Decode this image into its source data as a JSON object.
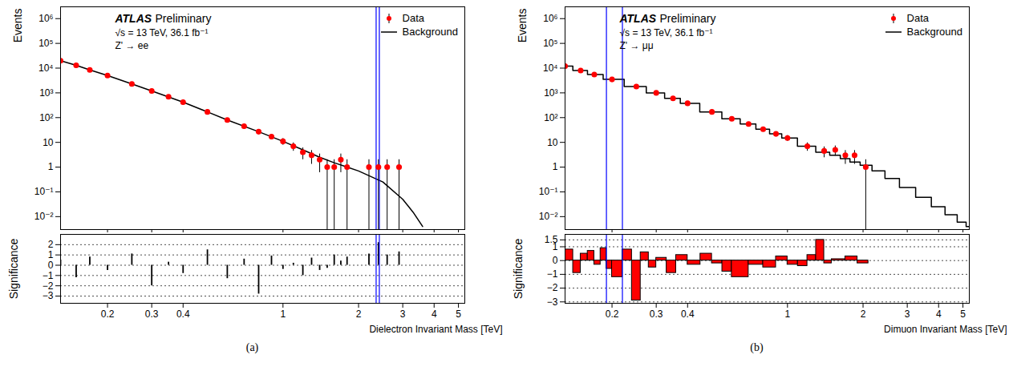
{
  "chart_data": [
    {
      "type": "scatter",
      "caption": "(a)",
      "title": "ATLAS",
      "subtitle": "Preliminary",
      "annotations": [
        "√s = 13 TeV, 36.1 fb⁻¹",
        "Z' → ee"
      ],
      "xlabel": "Dielectron Invariant Mass [TeV]",
      "ylabel": "Events",
      "log": true,
      "legend": "top-right",
      "xlim": [
        0.13,
        5.3
      ],
      "xticks": [
        0.2,
        0.3,
        0.4,
        1,
        2,
        3,
        4,
        5
      ],
      "ylim": [
        0.003,
        3000000
      ],
      "yticks": [
        {
          "value": 0.01,
          "label": "10⁻²"
        },
        {
          "value": 0.1,
          "label": "10⁻¹"
        },
        1,
        10,
        {
          "value": 100,
          "label": "10²"
        },
        {
          "value": 1000,
          "label": "10³"
        },
        {
          "value": 10000,
          "label": "10⁴"
        },
        {
          "value": 100000,
          "label": "10⁵"
        },
        {
          "value": 1000000,
          "label": "10⁶"
        }
      ],
      "series": [
        {
          "name": "Data",
          "type": "scatter",
          "marker": "circle",
          "color": "#ff0000",
          "x": [
            0.13,
            0.15,
            0.17,
            0.2,
            0.25,
            0.3,
            0.35,
            0.4,
            0.5,
            0.6,
            0.7,
            0.8,
            0.9,
            1.0,
            1.1,
            1.2,
            1.3,
            1.4,
            1.5,
            1.6,
            1.7,
            1.8,
            2.2,
            2.4,
            2.6,
            2.9
          ],
          "values": [
            20000,
            13000,
            8500,
            5000,
            2300,
            1200,
            700,
            420,
            170,
            80,
            45,
            27,
            17,
            11,
            7,
            4,
            3,
            2,
            1,
            1,
            2,
            1,
            1,
            1,
            1,
            1
          ],
          "errors": [
            141,
            114,
            92,
            71,
            48,
            35,
            26,
            20,
            13,
            9,
            7,
            5,
            4,
            3.3,
            2.6,
            2,
            1.7,
            1.4,
            1,
            1,
            1.4,
            1,
            1,
            1,
            1,
            1
          ]
        },
        {
          "name": "Background",
          "type": "line",
          "line_style": "solid",
          "color": "#000000",
          "x": [
            0.13,
            0.15,
            0.17,
            0.2,
            0.25,
            0.3,
            0.4,
            0.5,
            0.6,
            0.8,
            1.0,
            1.2,
            1.4,
            1.6,
            1.8,
            2.0,
            2.5,
            3.0,
            3.3,
            3.6
          ],
          "values": [
            20000,
            13000,
            8500,
            5000,
            2300,
            1200,
            420,
            170,
            80,
            27,
            11,
            5,
            2.5,
            1.5,
            1.0,
            0.7,
            0.25,
            0.05,
            0.015,
            0.004
          ]
        }
      ],
      "vertical_lines": {
        "x": [
          2.35,
          2.42
        ],
        "color": "#0000ff"
      },
      "significance": {
        "type": "bar",
        "ylabel": "Significance",
        "grid": true,
        "color": "#000000",
        "ylim": [
          -3.7,
          3
        ],
        "yticks": [
          {
            "value": -3,
            "label": "−3"
          },
          {
            "value": -2,
            "label": "−2"
          },
          {
            "value": -1,
            "label": "−1"
          },
          0,
          1,
          2
        ],
        "x": [
          0.13,
          0.15,
          0.17,
          0.2,
          0.25,
          0.3,
          0.35,
          0.4,
          0.5,
          0.6,
          0.7,
          0.8,
          0.9,
          1.0,
          1.1,
          1.2,
          1.3,
          1.4,
          1.5,
          1.6,
          1.7,
          1.8,
          2.2,
          2.4,
          2.6,
          2.9
        ],
        "values": [
          0.5,
          -1.2,
          0.8,
          -0.5,
          1.1,
          -2.0,
          0.3,
          -0.8,
          1.5,
          -1.3,
          0.6,
          -2.8,
          0.9,
          -0.4,
          0.2,
          -1.0,
          0.7,
          -0.5,
          -0.3,
          1.0,
          0.4,
          0.8,
          1.1,
          2.2,
          1.0,
          1.3
        ]
      }
    },
    {
      "type": "scatter",
      "caption": "(b)",
      "title": "ATLAS",
      "subtitle": "Preliminary",
      "annotations": [
        "√s = 13 TeV, 36.1 fb⁻¹",
        "Z' → μμ"
      ],
      "xlabel": "Dimuon Invariant Mass [TeV]",
      "ylabel": "Events",
      "log": true,
      "legend": "top-right",
      "xlim": [
        0.13,
        5.3
      ],
      "xticks": [
        0.2,
        0.3,
        0.4,
        1,
        2,
        3,
        4,
        5
      ],
      "ylim": [
        0.003,
        3000000
      ],
      "yticks": [
        {
          "value": 0.01,
          "label": "10⁻²"
        },
        {
          "value": 0.1,
          "label": "10⁻¹"
        },
        1,
        10,
        {
          "value": 100,
          "label": "10²"
        },
        {
          "value": 1000,
          "label": "10³"
        },
        {
          "value": 10000,
          "label": "10⁴"
        },
        {
          "value": 100000,
          "label": "10⁵"
        },
        {
          "value": 1000000,
          "label": "10⁶"
        }
      ],
      "series": [
        {
          "name": "Data",
          "type": "scatter",
          "marker": "circle",
          "color": "#ff0000",
          "x": [
            0.13,
            0.15,
            0.17,
            0.2,
            0.25,
            0.3,
            0.35,
            0.4,
            0.5,
            0.6,
            0.7,
            0.8,
            0.9,
            1.0,
            1.2,
            1.4,
            1.55,
            1.7,
            1.85,
            2.05
          ],
          "values": [
            12000,
            8000,
            5500,
            3500,
            1800,
            1000,
            600,
            380,
            170,
            90,
            55,
            34,
            22,
            15,
            7,
            4.5,
            5,
            3,
            3,
            1
          ],
          "errors": [
            110,
            89,
            74,
            59,
            42,
            32,
            24.5,
            19.5,
            13,
            9.5,
            7.4,
            5.8,
            4.7,
            3.9,
            2.6,
            2.1,
            2.2,
            1.7,
            1.7,
            1
          ]
        },
        {
          "name": "Background",
          "type": "step",
          "line_style": "solid",
          "color": "#000000",
          "x": [
            0.13,
            0.15,
            0.17,
            0.2,
            0.25,
            0.3,
            0.35,
            0.4,
            0.5,
            0.6,
            0.7,
            0.8,
            0.9,
            1.0,
            1.2,
            1.4,
            1.55,
            1.7,
            1.85,
            2.05,
            2.3,
            2.6,
            3.0,
            3.5,
            4.0,
            4.5,
            5.0,
            5.3
          ],
          "values": [
            12000,
            8000,
            5500,
            3500,
            1800,
            1000,
            600,
            380,
            170,
            90,
            55,
            34,
            22,
            15,
            7,
            4,
            3,
            2.2,
            1.6,
            1.2,
            0.7,
            0.35,
            0.15,
            0.06,
            0.025,
            0.012,
            0.006,
            0.004
          ]
        }
      ],
      "vertical_lines": {
        "x": [
          0.19,
          0.22
        ],
        "color": "#0000ff"
      },
      "significance": {
        "type": "histogram",
        "ylabel": "Significance",
        "grid": true,
        "color": "#ff0000",
        "ylim": [
          -3.1,
          1.9
        ],
        "yticks": [
          {
            "value": -3,
            "label": "−3"
          },
          {
            "value": -2,
            "label": "−2"
          },
          {
            "value": -1,
            "label": "−1"
          },
          0,
          1,
          1.5
        ],
        "bins": [
          0.13,
          0.14,
          0.15,
          0.16,
          0.17,
          0.18,
          0.19,
          0.2,
          0.22,
          0.24,
          0.26,
          0.28,
          0.3,
          0.33,
          0.36,
          0.4,
          0.45,
          0.5,
          0.55,
          0.6,
          0.7,
          0.8,
          0.9,
          1.0,
          1.1,
          1.2,
          1.3,
          1.4,
          1.5,
          1.7,
          1.9,
          2.1,
          2.3
        ],
        "values": [
          0.8,
          -0.9,
          0.5,
          0.7,
          -0.3,
          0.9,
          -0.6,
          -1.2,
          0.8,
          -2.9,
          0.6,
          -0.5,
          0.2,
          -0.9,
          0.4,
          -0.3,
          0.5,
          -0.2,
          -0.8,
          -1.2,
          -0.3,
          -0.5,
          0.3,
          -0.3,
          -0.4,
          0.4,
          1.5,
          -0.2,
          0.1,
          0.3,
          -0.2,
          0.0
        ]
      }
    }
  ]
}
